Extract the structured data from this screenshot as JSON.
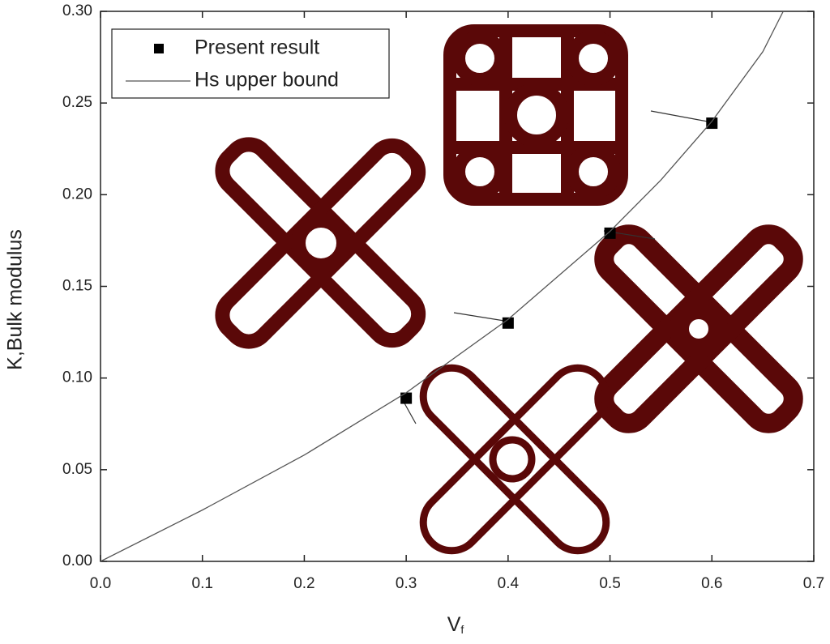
{
  "chart_data": {
    "type": "scatter",
    "x_label": "V",
    "x_label_subscript": "f",
    "y_label": "K,Bulk modulus",
    "xlim": [
      0,
      0.7
    ],
    "xticks": [
      {
        "value": 0,
        "label": "0.0"
      },
      {
        "value": 0.1,
        "label": "0.1"
      },
      {
        "value": 0.2,
        "label": "0.2"
      },
      {
        "value": 0.3,
        "label": "0.3"
      },
      {
        "value": 0.4,
        "label": "0.4"
      },
      {
        "value": 0.5,
        "label": "0.5"
      },
      {
        "value": 0.6,
        "label": "0.6"
      },
      {
        "value": 0.7,
        "label": "0.7"
      }
    ],
    "ylim": [
      0,
      0.3
    ],
    "yticks": [
      {
        "value": 0,
        "label": "0.00"
      },
      {
        "value": 0.05,
        "label": "0.05"
      },
      {
        "value": 0.1,
        "label": "0.10"
      },
      {
        "value": 0.15,
        "label": "0.15"
      },
      {
        "value": 0.2,
        "label": "0.20"
      },
      {
        "value": 0.25,
        "label": "0.25"
      },
      {
        "value": 0.3,
        "label": "0.30"
      }
    ],
    "legend": "upper left",
    "series": [
      {
        "name": "Present result",
        "style": "marker",
        "color": "#000000",
        "x": [
          0.3,
          0.4,
          0.5,
          0.6
        ],
        "values": [
          0.089,
          0.13,
          0.179,
          0.239
        ]
      },
      {
        "name": "Hs upper bound",
        "style": "line",
        "color": "#555555",
        "x": [
          0,
          0.1,
          0.2,
          0.3,
          0.4,
          0.5,
          0.55,
          0.6,
          0.65,
          0.67
        ],
        "values": [
          0,
          0.028,
          0.058,
          0.092,
          0.132,
          0.18,
          0.208,
          0.24,
          0.278,
          0.3
        ]
      }
    ]
  }
}
